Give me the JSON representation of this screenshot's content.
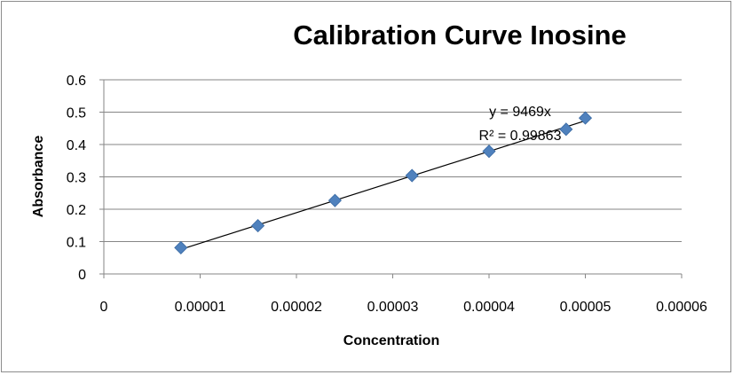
{
  "chart_data": {
    "type": "scatter",
    "title": "Calibration Curve Inosine",
    "xlabel": "Concentration",
    "ylabel": "Absorbance",
    "xlim": [
      0,
      6e-05
    ],
    "ylim": [
      0,
      0.6
    ],
    "x_ticks": [
      "0",
      "0.00001",
      "0.00002",
      "0.00003",
      "0.00004",
      "0.00005",
      "0.00006"
    ],
    "y_ticks": [
      "0",
      "0.1",
      "0.2",
      "0.3",
      "0.4",
      "0.5",
      "0.6"
    ],
    "grid": "horizontal",
    "legend": "none",
    "marker": "diamond",
    "marker_color": "#4f81bd",
    "series": [
      {
        "x": [
          8e-06,
          1.6e-05,
          2.4e-05,
          3.2e-05,
          4e-05,
          4.8e-05,
          5e-05
        ],
        "y": [
          0.081,
          0.149,
          0.227,
          0.304,
          0.379,
          0.447,
          0.482
        ]
      }
    ],
    "trendline": {
      "type": "linear",
      "slope": 9469,
      "intercept": 0,
      "x_range": [
        8e-06,
        5e-05
      ],
      "equation": "y = 9469x",
      "r_squared": "R² = 0.99863"
    }
  }
}
